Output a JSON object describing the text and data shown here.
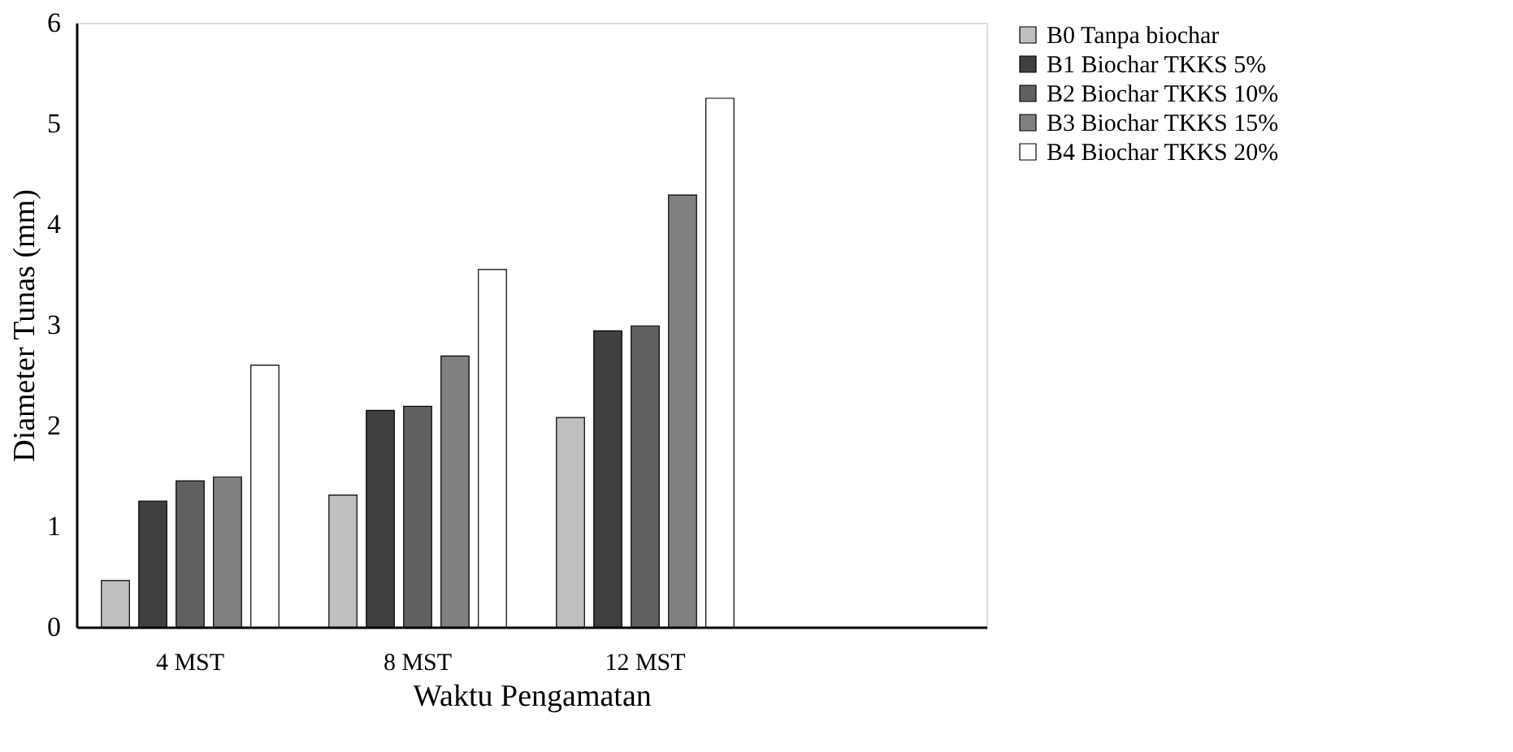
{
  "chart_data": {
    "type": "bar",
    "xlabel": "Waktu Pengamatan",
    "ylabel": "Diameter Tunas (mm)",
    "categories": [
      "4 MST",
      "8 MST",
      "12 MST",
      null
    ],
    "series": [
      {
        "name": "B0 Tanpa biochar",
        "color": "#bfbfbf",
        "values": [
          0.46,
          1.31,
          2.08,
          null
        ]
      },
      {
        "name": "B1 Biochar TKKS 5%",
        "color": "#404040",
        "values": [
          1.25,
          2.15,
          2.94,
          null
        ]
      },
      {
        "name": "B2 Biochar TKKS 10%",
        "color": "#606060",
        "values": [
          1.45,
          2.19,
          2.99,
          null
        ]
      },
      {
        "name": "B3 Biochar TKKS 15%",
        "color": "#808080",
        "values": [
          1.49,
          2.69,
          4.29,
          null
        ]
      },
      {
        "name": "B4 Biochar TKKS 20%",
        "color": "#ffffff",
        "values": [
          2.6,
          3.55,
          5.25,
          null
        ]
      }
    ],
    "ylim": [
      0,
      6
    ],
    "yticks": [
      0,
      1,
      2,
      3,
      4,
      5,
      6
    ],
    "grid": false,
    "legend": "right"
  }
}
